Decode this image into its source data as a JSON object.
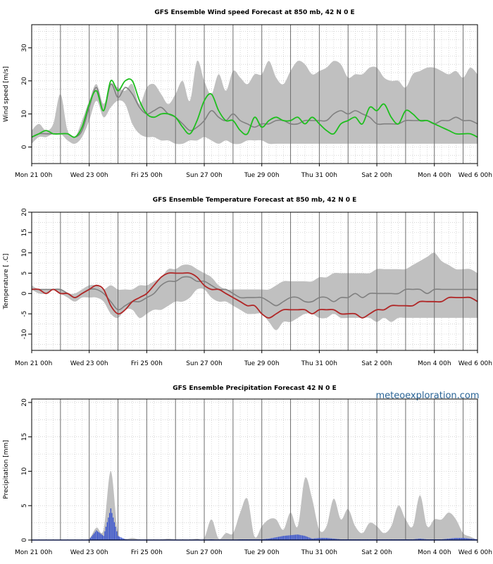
{
  "site_label": "meteoexploration.com",
  "time_axis": {
    "range_hours": [
      0,
      372
    ],
    "labels": [
      "Mon 21 00h",
      "Wed 23 00h",
      "Fri 25 00h",
      "Sun 27 00h",
      "Tue 29 00h",
      "Thu 31 00h",
      "Sat  2 00h",
      "Mon  4 00h",
      "Wed  6 00h"
    ],
    "label_hours": [
      0,
      48,
      96,
      144,
      192,
      240,
      288,
      336,
      372
    ],
    "major_hours": [
      24,
      48,
      72,
      96,
      120,
      144,
      168,
      192,
      216,
      240,
      264,
      288,
      312,
      336,
      360
    ]
  },
  "colors": {
    "ensemble_band": "#c0c0c0",
    "mean_line": "#808080",
    "wind_line": "#1fbf1f",
    "temp_line": "#b02626",
    "precip_bars": "#1f3fd0",
    "grid": "#c8c8c8",
    "major_grid": "#6e6e6e"
  },
  "chart_data": [
    {
      "type": "area",
      "title": "GFS Ensemble Wind speed Forecast at 850 mb, 42 N 0 E",
      "ylabel": "Wind speed [m/s]",
      "ylim": [
        -5,
        37
      ],
      "yticks": [
        0,
        10,
        20,
        30
      ],
      "hours": [
        0,
        6,
        12,
        18,
        24,
        30,
        36,
        42,
        48,
        54,
        60,
        66,
        72,
        78,
        84,
        90,
        96,
        102,
        108,
        114,
        120,
        126,
        132,
        138,
        144,
        150,
        156,
        162,
        168,
        174,
        180,
        186,
        192,
        198,
        204,
        210,
        216,
        222,
        228,
        234,
        240,
        246,
        252,
        258,
        264,
        270,
        276,
        282,
        288,
        294,
        300,
        306,
        312,
        318,
        324,
        330,
        336,
        342,
        348,
        354,
        360,
        366,
        372
      ],
      "series": [
        {
          "name": "ensemble_min",
          "values": [
            1,
            3,
            3,
            4,
            4,
            2,
            1,
            3,
            8,
            14,
            9,
            12,
            14,
            13,
            7,
            4,
            3,
            3,
            2,
            2,
            1,
            1,
            2,
            2,
            3,
            2,
            1,
            2,
            1,
            1,
            2,
            2,
            2,
            1,
            1,
            1,
            1,
            1,
            1,
            1,
            1,
            1,
            1,
            1,
            1,
            1,
            1,
            1,
            1,
            1,
            1,
            1,
            1,
            1,
            1,
            1,
            1,
            1,
            1,
            1,
            1,
            1,
            1
          ]
        },
        {
          "name": "ensemble_max",
          "values": [
            5,
            7,
            5,
            7,
            16,
            5,
            3,
            8,
            14,
            19,
            13,
            19,
            18,
            17,
            19,
            13,
            18,
            19,
            16,
            13,
            16,
            20,
            14,
            26,
            20,
            16,
            22,
            17,
            23,
            21,
            19,
            22,
            22,
            26,
            21,
            19,
            23,
            26,
            25,
            22,
            23,
            24,
            26,
            25,
            21,
            22,
            22,
            24,
            24,
            21,
            20,
            20,
            18,
            22,
            23,
            24,
            24,
            23,
            22,
            23,
            21,
            24,
            22
          ]
        },
        {
          "name": "ensemble_mean",
          "values": [
            3,
            4,
            4,
            4,
            4,
            4,
            3,
            5,
            12,
            18,
            11,
            19,
            15,
            18,
            16,
            12,
            10,
            11,
            12,
            10,
            9,
            7,
            5,
            6,
            8,
            11,
            9,
            8,
            10,
            8,
            7,
            6,
            7,
            7,
            8,
            8,
            7,
            7,
            8,
            8,
            8,
            8,
            10,
            11,
            10,
            11,
            10,
            9,
            7,
            7,
            7,
            7,
            8,
            8,
            8,
            8,
            7,
            8,
            8,
            9,
            8,
            8,
            7
          ]
        },
        {
          "name": "control",
          "values": [
            3,
            4,
            5,
            4,
            4,
            4,
            3,
            6,
            13,
            17,
            11,
            20,
            17,
            20,
            20,
            14,
            10,
            9,
            10,
            10,
            9,
            6,
            4,
            8,
            14,
            16,
            11,
            8,
            8,
            5,
            4,
            9,
            6,
            8,
            9,
            8,
            8,
            9,
            7,
            9,
            7,
            5,
            4,
            7,
            8,
            9,
            7,
            12,
            11,
            13,
            9,
            7,
            11,
            10,
            8,
            8,
            7,
            6,
            5,
            4,
            4,
            4,
            3
          ]
        }
      ]
    },
    {
      "type": "area",
      "title": "GFS Ensemble Temperature Forecast at 850 mb, 42 N 0 E",
      "ylabel": "Temperature [ .C]",
      "ylim": [
        -14,
        20
      ],
      "yticks": [
        -10,
        -5,
        0,
        5,
        10,
        15,
        20
      ],
      "hours": [
        0,
        6,
        12,
        18,
        24,
        30,
        36,
        42,
        48,
        54,
        60,
        66,
        72,
        78,
        84,
        90,
        96,
        102,
        108,
        114,
        120,
        126,
        132,
        138,
        144,
        150,
        156,
        162,
        168,
        174,
        180,
        186,
        192,
        198,
        204,
        210,
        216,
        222,
        228,
        234,
        240,
        246,
        252,
        258,
        264,
        270,
        276,
        282,
        288,
        294,
        300,
        306,
        312,
        318,
        324,
        330,
        336,
        342,
        348,
        354,
        360,
        366,
        372
      ],
      "series": [
        {
          "name": "ensemble_min",
          "values": [
            1,
            0,
            0,
            1,
            0,
            -1,
            -2,
            -1,
            -1,
            -1,
            -2,
            -5,
            -6,
            -4,
            -4,
            -6,
            -5,
            -4,
            -4,
            -3,
            -2,
            -2,
            -1,
            1,
            1,
            -1,
            -2,
            -2,
            -3,
            -4,
            -5,
            -5,
            -5,
            -7,
            -9,
            -7,
            -7,
            -6,
            -5,
            -5,
            -6,
            -6,
            -5,
            -6,
            -6,
            -6,
            -6,
            -6,
            -7,
            -6,
            -7,
            -6,
            -6,
            -6,
            -6,
            -6,
            -6,
            -6,
            -6,
            -6,
            -6,
            -6,
            -6
          ]
        },
        {
          "name": "ensemble_max",
          "values": [
            2,
            1,
            1,
            1,
            1,
            0,
            0,
            1,
            2,
            2,
            1,
            2,
            1,
            1,
            1,
            2,
            2,
            3,
            4,
            6,
            6,
            7,
            7,
            6,
            5,
            4,
            2,
            1,
            1,
            1,
            1,
            1,
            1,
            1,
            2,
            3,
            3,
            3,
            3,
            3,
            4,
            4,
            5,
            5,
            5,
            5,
            5,
            5,
            6,
            6,
            6,
            6,
            6,
            7,
            8,
            9,
            10,
            8,
            7,
            6,
            6,
            6,
            5
          ]
        },
        {
          "name": "ensemble_mean",
          "values": [
            1,
            1,
            1,
            1,
            1,
            0,
            -1,
            0,
            1,
            1,
            0,
            -2,
            -4,
            -3,
            -2,
            -2,
            -1,
            0,
            2,
            3,
            3,
            4,
            4,
            3,
            3,
            2,
            1,
            1,
            0,
            -1,
            -1,
            -1,
            -1,
            -2,
            -3,
            -2,
            -1,
            -1,
            -2,
            -2,
            -1,
            -1,
            -2,
            -1,
            -1,
            0,
            -1,
            0,
            0,
            0,
            0,
            0,
            1,
            1,
            1,
            0,
            1,
            1,
            1,
            1,
            1,
            1,
            1
          ]
        },
        {
          "name": "control",
          "values": [
            1,
            1,
            0,
            1,
            0,
            0,
            -1,
            0,
            1,
            2,
            1,
            -3,
            -5,
            -4,
            -2,
            -1,
            0,
            2,
            4,
            5,
            5,
            5,
            5,
            4,
            2,
            1,
            1,
            0,
            -1,
            -2,
            -3,
            -3,
            -5,
            -6,
            -5,
            -4,
            -4,
            -4,
            -4,
            -5,
            -4,
            -4,
            -4,
            -5,
            -5,
            -5,
            -6,
            -5,
            -4,
            -4,
            -3,
            -3,
            -3,
            -3,
            -2,
            -2,
            -2,
            -2,
            -1,
            -1,
            -1,
            -1,
            -2
          ]
        }
      ]
    },
    {
      "type": "bar",
      "title": "GFS Ensemble Precipitation Forecast 42 N 0 E",
      "ylabel": "Precipitation [mm]",
      "ylim": [
        0,
        20.5
      ],
      "yticks": [
        0,
        5,
        10,
        15,
        20
      ],
      "hours": [
        0,
        6,
        12,
        18,
        24,
        30,
        36,
        42,
        48,
        54,
        60,
        66,
        72,
        78,
        84,
        90,
        96,
        102,
        108,
        114,
        120,
        126,
        132,
        138,
        144,
        150,
        156,
        162,
        168,
        174,
        180,
        186,
        192,
        198,
        204,
        210,
        216,
        222,
        228,
        234,
        240,
        246,
        252,
        258,
        264,
        270,
        276,
        282,
        288,
        294,
        300,
        306,
        312,
        318,
        324,
        330,
        336,
        342,
        348,
        354,
        360,
        366,
        372
      ],
      "series": [
        {
          "name": "ensemble_min",
          "values": [
            0,
            0,
            0,
            0,
            0,
            0,
            0,
            0,
            0,
            0,
            0,
            0,
            0,
            0,
            0,
            0,
            0,
            0,
            0,
            0,
            0,
            0,
            0,
            0,
            0,
            0,
            0,
            0,
            0,
            0,
            0,
            0,
            0,
            0,
            0,
            0,
            0,
            0,
            0,
            0,
            0,
            0,
            0,
            0,
            0,
            0,
            0,
            0,
            0,
            0,
            0,
            0,
            0,
            0,
            0,
            0,
            0,
            0,
            0,
            0,
            0,
            0,
            0
          ]
        },
        {
          "name": "ensemble_max",
          "values": [
            0,
            0,
            0,
            0,
            0,
            0,
            0,
            0,
            0.2,
            1.8,
            1.5,
            10.0,
            1.0,
            0.2,
            0.3,
            0.1,
            0.1,
            0.1,
            0.1,
            0.2,
            0.1,
            0.1,
            0.1,
            0.2,
            0.3,
            3.0,
            0.2,
            1.0,
            1.0,
            4.0,
            6.0,
            0.5,
            2.0,
            3.0,
            3.0,
            1.5,
            4.0,
            2.0,
            9.0,
            6.0,
            1.5,
            2.0,
            6.0,
            3.0,
            4.5,
            2.0,
            1.0,
            2.5,
            2.0,
            1.0,
            2.0,
            5.0,
            3.0,
            2.0,
            6.5,
            2.0,
            3.0,
            3.0,
            4.0,
            3.0,
            1.0,
            0.5,
            0.0
          ]
        },
        {
          "name": "mean_precip",
          "values": [
            0,
            0,
            0,
            0,
            0,
            0,
            0,
            0,
            0.1,
            1.4,
            0.6,
            4.6,
            0.6,
            0.1,
            0,
            0,
            0,
            0,
            0,
            0,
            0,
            0,
            0,
            0,
            0,
            0.1,
            0,
            0,
            0,
            0.1,
            0.1,
            0.1,
            0.1,
            0.2,
            0.4,
            0.6,
            0.7,
            0.8,
            0.6,
            0.2,
            0.3,
            0.3,
            0.2,
            0.1,
            0.1,
            0.1,
            0.1,
            0.1,
            0.1,
            0.1,
            0.1,
            0.1,
            0.1,
            0.1,
            0.2,
            0.1,
            0.1,
            0.1,
            0.2,
            0.3,
            0.3,
            0.2,
            0.1
          ]
        }
      ]
    }
  ]
}
